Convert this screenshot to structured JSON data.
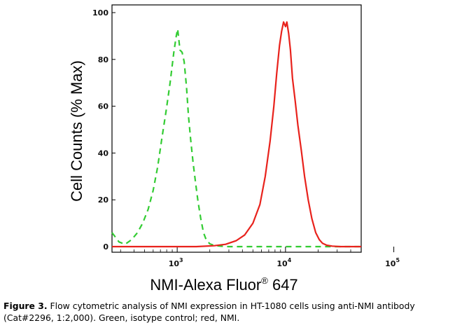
{
  "chart_data": {
    "type": "line",
    "title": "",
    "xlabel": "NMI-Alexa Fluor",
    "xlabel_sup": "®",
    "xlabel_suffix": " 647",
    "ylabel": "Cell Counts (% Max)",
    "xscale": "log",
    "xlim": [
      250,
      50000
    ],
    "ylim": [
      0,
      100
    ],
    "yticks": [
      0,
      20,
      40,
      60,
      80,
      100
    ],
    "xticks": [
      {
        "base": "10",
        "exp": "3",
        "value": 1000
      },
      {
        "base": "10",
        "exp": "4",
        "value": 10000
      },
      {
        "base": "10",
        "exp": "5",
        "value": 100000
      }
    ],
    "grid": false,
    "legend": "none",
    "series": [
      {
        "color": "#33cc33",
        "style": "dashed",
        "x": [
          250,
          290,
          330,
          380,
          430,
          480,
          540,
          600,
          660,
          720,
          790,
          860,
          930,
          980,
          1010,
          1060,
          1110,
          1160,
          1220,
          1270,
          1330,
          1400,
          1480,
          1560,
          1650,
          1750,
          1850,
          2000,
          2200,
          2500,
          3000,
          5000,
          10000,
          50000
        ],
        "y": [
          6,
          2,
          1,
          3,
          6,
          10,
          16,
          24,
          34,
          46,
          58,
          70,
          83,
          90,
          93,
          84,
          83,
          79,
          68,
          56,
          46,
          36,
          27,
          19,
          12,
          6,
          3,
          1.2,
          0.5,
          0.2,
          0,
          0,
          0,
          0
        ]
      },
      {
        "color": "#e8221c",
        "style": "solid",
        "x": [
          250,
          1500,
          2200,
          2800,
          3500,
          4200,
          5000,
          5800,
          6500,
          7200,
          7800,
          8300,
          8800,
          9200,
          9600,
          10000,
          10300,
          10700,
          11100,
          11600,
          12300,
          13000,
          14000,
          15000,
          16200,
          17500,
          19000,
          20500,
          22000,
          24000,
          27000,
          32000,
          50000
        ],
        "y": [
          0,
          0,
          0.4,
          1,
          2.5,
          5,
          10,
          18,
          30,
          45,
          60,
          74,
          86,
          92,
          96,
          94,
          96,
          91,
          84,
          72,
          62,
          52,
          41,
          30,
          20,
          12,
          6,
          3,
          1.4,
          0.6,
          0.2,
          0,
          0
        ]
      }
    ]
  },
  "caption": {
    "label": "Figure 3.",
    "text": " Flow cytometric analysis of NMI expression in HT-1080 cells using anti-NMI antibody (Cat#2296, 1:2,000). Green, isotype control; red, NMI."
  }
}
